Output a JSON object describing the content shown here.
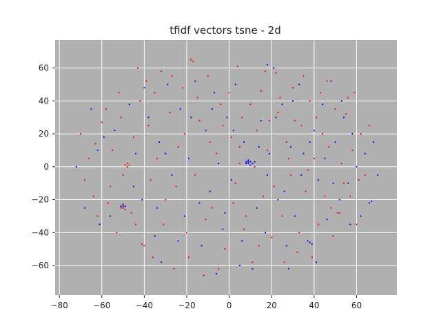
{
  "chart_data": {
    "type": "scatter",
    "title": "tfidf vectors tsne - 2d",
    "xlabel": "",
    "ylabel": "",
    "xlim": [
      -82,
      79
    ],
    "ylim": [
      -78,
      77
    ],
    "xticks": [
      -80,
      -60,
      -40,
      -20,
      0,
      20,
      40,
      60
    ],
    "yticks": [
      -60,
      -40,
      -20,
      0,
      20,
      40,
      60
    ],
    "xtick_labels": [
      "−80",
      "−60",
      "−40",
      "−20",
      "0",
      "20",
      "40",
      "60"
    ],
    "ytick_labels": [
      "−60",
      "−40",
      "−20",
      "0",
      "20",
      "40",
      "60"
    ],
    "grid": true,
    "legend": "none",
    "background_color": "#b0b0b0",
    "grid_color": "#ffffff",
    "series": [
      {
        "color": "#ff0000",
        "points": [
          [
            -70,
            20
          ],
          [
            -66,
            5
          ],
          [
            -64,
            -18
          ],
          [
            -62,
            -30
          ],
          [
            -60,
            27
          ],
          [
            -58,
            35
          ],
          [
            -56,
            -12
          ],
          [
            -55,
            10
          ],
          [
            -52,
            45
          ],
          [
            -50,
            -5
          ],
          [
            -49,
            1
          ],
          [
            -48,
            0
          ],
          [
            -48,
            2
          ],
          [
            -47,
            1
          ],
          [
            -45,
            18
          ],
          [
            -44,
            -35
          ],
          [
            -42,
            40
          ],
          [
            -41,
            -47
          ],
          [
            -40,
            -48
          ],
          [
            -39,
            52
          ],
          [
            -38,
            25
          ],
          [
            -36,
            -55
          ],
          [
            -34,
            5
          ],
          [
            -32,
            58
          ],
          [
            -30,
            -20
          ],
          [
            -28,
            33
          ],
          [
            -26,
            -62
          ],
          [
            -24,
            12
          ],
          [
            -22,
            48
          ],
          [
            -20,
            -40
          ],
          [
            -18,
            65
          ],
          [
            -17,
            64
          ],
          [
            -16,
            -5
          ],
          [
            -14,
            28
          ],
          [
            -12,
            -66
          ],
          [
            -10,
            55
          ],
          [
            -8,
            -25
          ],
          [
            -6,
            8
          ],
          [
            -4,
            38
          ],
          [
            -2,
            -50
          ],
          [
            1,
            18
          ],
          [
            3,
            -10
          ],
          [
            4,
            61
          ],
          [
            6,
            30
          ],
          [
            7,
            -38
          ],
          [
            9,
            3
          ],
          [
            11,
            -58
          ],
          [
            13,
            22
          ],
          [
            15,
            46
          ],
          [
            16,
            -18
          ],
          [
            18,
            10
          ],
          [
            20,
            -43
          ],
          [
            22,
            57
          ],
          [
            23,
            33
          ],
          [
            25,
            -30
          ],
          [
            27,
            15
          ],
          [
            29,
            -5
          ],
          [
            30,
            48
          ],
          [
            32,
            -52
          ],
          [
            34,
            25
          ],
          [
            36,
            -15
          ],
          [
            38,
            40
          ],
          [
            40,
            5
          ],
          [
            42,
            -35
          ],
          [
            44,
            20
          ],
          [
            46,
            52
          ],
          [
            48,
            -25
          ],
          [
            50,
            35
          ],
          [
            52,
            -28
          ],
          [
            54,
            -10
          ],
          [
            56,
            42
          ],
          [
            58,
            10
          ],
          [
            60,
            -35
          ],
          [
            62,
            20
          ],
          [
            64,
            -5
          ],
          [
            66,
            25
          ],
          [
            -68,
            -8
          ],
          [
            -63,
            14
          ],
          [
            -57,
            -22
          ],
          [
            -53,
            -40
          ],
          [
            -51,
            30
          ],
          [
            -46,
            -28
          ],
          [
            -43,
            60
          ],
          [
            -37,
            -8
          ],
          [
            -35,
            45
          ],
          [
            -31,
            -35
          ],
          [
            -27,
            55
          ],
          [
            -25,
            -12
          ],
          [
            -21,
            20
          ],
          [
            -19,
            -55
          ],
          [
            -15,
            42
          ],
          [
            -11,
            -32
          ],
          [
            -9,
            15
          ],
          [
            -5,
            -62
          ],
          [
            -3,
            25
          ],
          [
            0,
            45
          ],
          [
            2,
            -22
          ],
          [
            5,
            12
          ],
          [
            8,
            -30
          ],
          [
            10,
            38
          ],
          [
            12,
            0
          ],
          [
            14,
            -48
          ],
          [
            17,
            58
          ],
          [
            19,
            28
          ],
          [
            21,
            -12
          ],
          [
            24,
            42
          ],
          [
            26,
            -58
          ],
          [
            28,
            5
          ],
          [
            31,
            28
          ],
          [
            33,
            -40
          ],
          [
            35,
            55
          ],
          [
            37,
            -2
          ],
          [
            39,
            -55
          ],
          [
            41,
            30
          ],
          [
            43,
            45
          ],
          [
            45,
            -18
          ],
          [
            47,
            12
          ],
          [
            49,
            -42
          ],
          [
            51,
            -28
          ],
          [
            53,
            2
          ],
          [
            55,
            32
          ],
          [
            57,
            -18
          ],
          [
            59,
            45
          ],
          [
            61,
            -8
          ],
          [
            -50,
            -24
          ],
          [
            -51,
            -25
          ],
          [
            -49,
            -26
          ],
          [
            5,
            2
          ]
        ]
      },
      {
        "color": "#0000ff",
        "points": [
          [
            -72,
            0
          ],
          [
            -68,
            -25
          ],
          [
            -65,
            35
          ],
          [
            -61,
            -35
          ],
          [
            -59,
            18
          ],
          [
            -54,
            22
          ],
          [
            -51,
            -24
          ],
          [
            -50,
            -25
          ],
          [
            -50,
            -23
          ],
          [
            -49,
            -24
          ],
          [
            -47,
            38
          ],
          [
            -44,
            8
          ],
          [
            -41,
            -20
          ],
          [
            -38,
            30
          ],
          [
            -35,
            -42
          ],
          [
            -33,
            15
          ],
          [
            -29,
            50
          ],
          [
            -27,
            -5
          ],
          [
            -23,
            35
          ],
          [
            -21,
            -30
          ],
          [
            -19,
            5
          ],
          [
            -16,
            52
          ],
          [
            -13,
            -48
          ],
          [
            -11,
            22
          ],
          [
            -9,
            -15
          ],
          [
            -7,
            45
          ],
          [
            -5,
            2
          ],
          [
            -3,
            -38
          ],
          [
            -1,
            30
          ],
          [
            1,
            -8
          ],
          [
            3,
            50
          ],
          [
            5,
            -60
          ],
          [
            7,
            15
          ],
          [
            8,
            3
          ],
          [
            9,
            2
          ],
          [
            10,
            3
          ],
          [
            11,
            2
          ],
          [
            9,
            4
          ],
          [
            10,
            1
          ],
          [
            8,
            2
          ],
          [
            12,
            3
          ],
          [
            9,
            3
          ],
          [
            13,
            -25
          ],
          [
            15,
            28
          ],
          [
            17,
            -40
          ],
          [
            19,
            8
          ],
          [
            21,
            60
          ],
          [
            23,
            -20
          ],
          [
            25,
            38
          ],
          [
            27,
            -48
          ],
          [
            29,
            12
          ],
          [
            31,
            -30
          ],
          [
            33,
            50
          ],
          [
            35,
            8
          ],
          [
            37,
            -45
          ],
          [
            38,
            -46
          ],
          [
            39,
            -47
          ],
          [
            40,
            22
          ],
          [
            42,
            -8
          ],
          [
            44,
            38
          ],
          [
            46,
            -32
          ],
          [
            48,
            52
          ],
          [
            50,
            15
          ],
          [
            52,
            -20
          ],
          [
            54,
            30
          ],
          [
            56,
            -10
          ],
          [
            58,
            20
          ],
          [
            62,
            -30
          ],
          [
            64,
            8
          ],
          [
            66,
            -22
          ],
          [
            67,
            -21
          ],
          [
            70,
            -5
          ],
          [
            -62,
            10
          ],
          [
            -56,
            -30
          ],
          [
            -45,
            -12
          ],
          [
            -40,
            48
          ],
          [
            -34,
            -25
          ],
          [
            -30,
            8
          ],
          [
            -24,
            -45
          ],
          [
            -18,
            30
          ],
          [
            -14,
            -22
          ],
          [
            -8,
            35
          ],
          [
            -2,
            -28
          ],
          [
            2,
            22
          ],
          [
            6,
            -45
          ],
          [
            11,
            -62
          ],
          [
            14,
            12
          ],
          [
            18,
            -5
          ],
          [
            22,
            30
          ],
          [
            26,
            -15
          ],
          [
            30,
            40
          ],
          [
            34,
            -5
          ],
          [
            38,
            15
          ],
          [
            41,
            -58
          ],
          [
            45,
            5
          ],
          [
            49,
            -10
          ],
          [
            53,
            40
          ],
          [
            57,
            -35
          ],
          [
            60,
            0
          ],
          [
            68,
            15
          ],
          [
            18,
            62
          ],
          [
            -6,
            -65
          ],
          [
            28,
            -62
          ],
          [
            -32,
            -58
          ]
        ]
      }
    ]
  }
}
